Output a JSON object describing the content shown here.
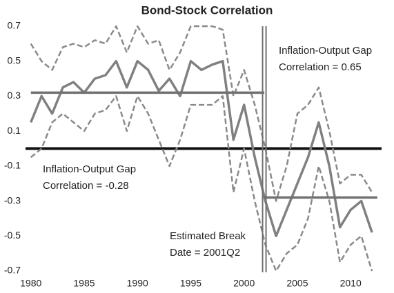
{
  "chart_data": {
    "type": "line",
    "title": "Bond-Stock Correlation",
    "x": [
      1980,
      1981,
      1982,
      1983,
      1984,
      1985,
      1986,
      1987,
      1988,
      1989,
      1990,
      1991,
      1992,
      1993,
      1994,
      1995,
      1996,
      1997,
      1998,
      1999,
      2000,
      2001,
      2002,
      2003,
      2004,
      2005,
      2006,
      2007,
      2008,
      2009,
      2010,
      2011,
      2012
    ],
    "series": [
      {
        "color": "#8a8a8a",
        "style": "dashed",
        "values": [
          0.6,
          0.5,
          0.45,
          0.58,
          0.6,
          0.58,
          0.62,
          0.6,
          0.7,
          0.55,
          0.7,
          0.6,
          0.62,
          0.45,
          0.55,
          0.7,
          0.7,
          0.7,
          0.68,
          0.3,
          0.45,
          0.25,
          0.0,
          -0.3,
          -0.1,
          0.2,
          0.25,
          0.35,
          0.1,
          -0.2,
          -0.15,
          -0.15,
          -0.25
        ]
      },
      {
        "color": "#808080",
        "style": "solid",
        "values": [
          0.15,
          0.3,
          0.2,
          0.35,
          0.38,
          0.32,
          0.4,
          0.42,
          0.5,
          0.35,
          0.5,
          0.45,
          0.33,
          0.4,
          0.3,
          0.5,
          0.45,
          0.48,
          0.5,
          0.05,
          0.25,
          -0.05,
          -0.3,
          -0.5,
          -0.35,
          -0.2,
          -0.05,
          0.15,
          -0.1,
          -0.45,
          -0.35,
          -0.3,
          -0.48
        ]
      },
      {
        "color": "#8a8a8a",
        "style": "dashed",
        "values": [
          -0.05,
          0.0,
          0.15,
          0.2,
          0.15,
          0.1,
          0.2,
          0.22,
          0.3,
          0.1,
          0.3,
          0.2,
          0.05,
          -0.1,
          0.05,
          0.25,
          0.25,
          0.25,
          0.3,
          -0.25,
          0.0,
          -0.3,
          -0.55,
          -0.7,
          -0.6,
          -0.55,
          -0.4,
          -0.1,
          -0.3,
          -0.65,
          -0.55,
          -0.5,
          -0.7
        ]
      }
    ],
    "segments": [
      {
        "value": 0.32,
        "x": [
          1980,
          2001.9
        ],
        "color": "#707070"
      },
      {
        "value": -0.28,
        "x": [
          2001.9,
          2012.5
        ],
        "color": "#707070"
      }
    ],
    "reference_line": {
      "value": 0,
      "color": "#111111"
    },
    "break_x": 2001.9,
    "annotations": [
      [
        "Inflation-Output Gap",
        "Correlation = 0.65"
      ],
      [
        "Inflation-Output Gap",
        "Correlation = -0.28"
      ],
      [
        "Estimated Break",
        "Date = 2001Q2"
      ]
    ],
    "xlim": [
      1979.5,
      2012.9
    ],
    "xticks": [
      1980,
      1985,
      1990,
      1995,
      2000,
      2005,
      2010
    ],
    "ylim": [
      -0.7,
      0.7
    ],
    "yticks": [
      0.7,
      0.5,
      0.3,
      0.1,
      -0.1,
      -0.3,
      -0.5,
      -0.7
    ],
    "grid": false
  }
}
